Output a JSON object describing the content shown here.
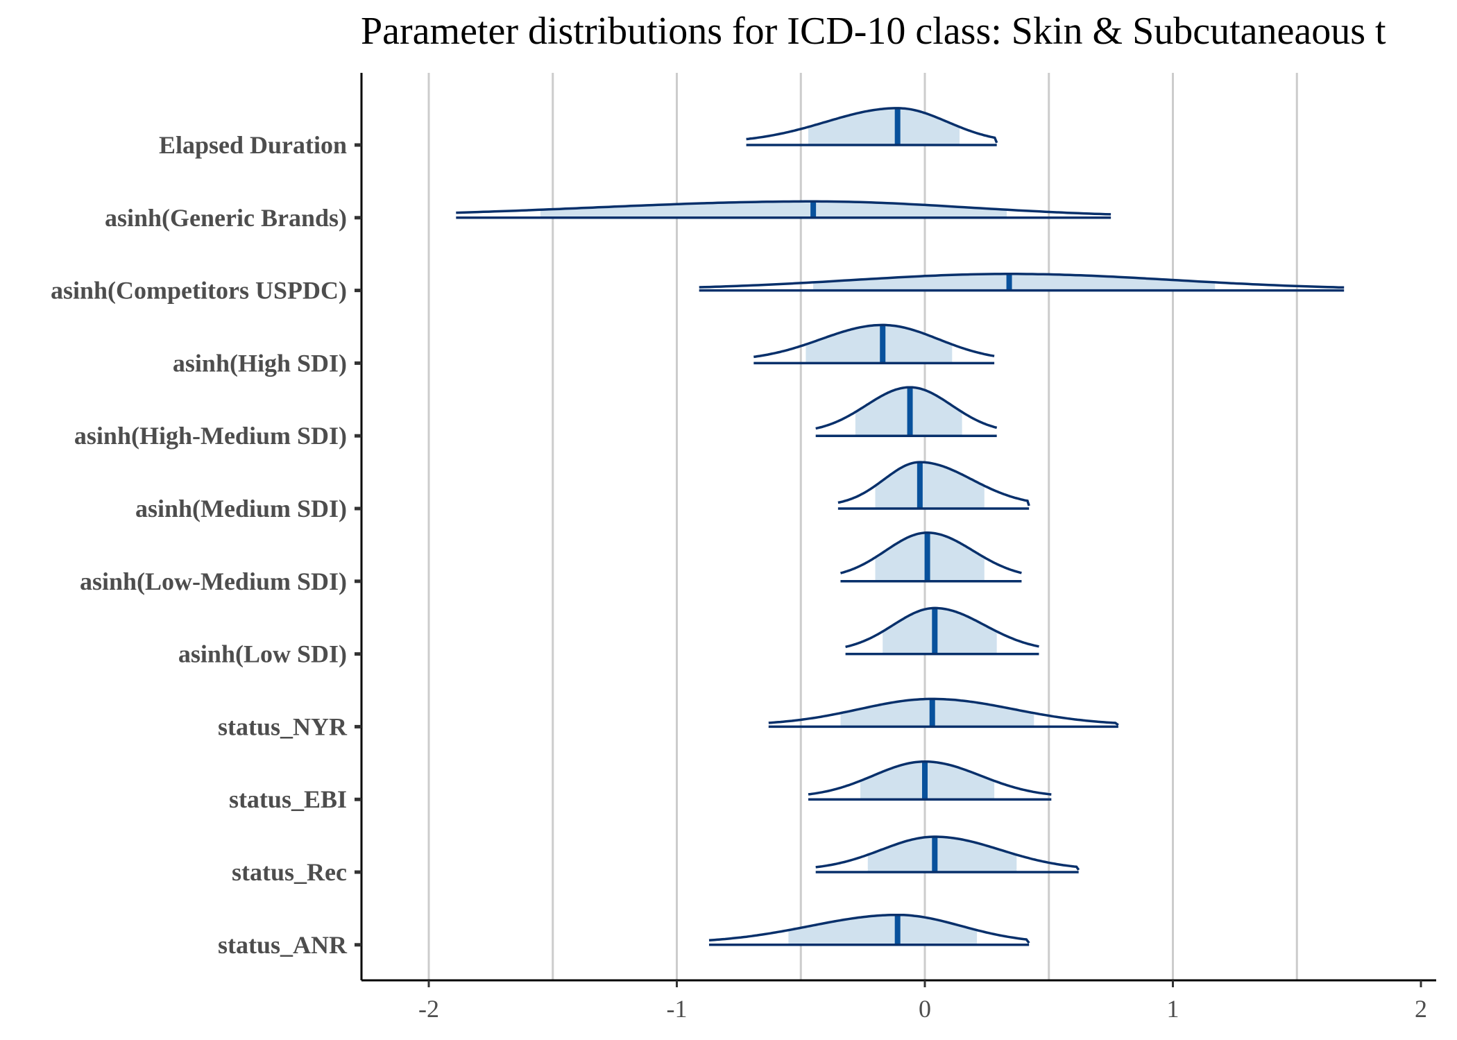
{
  "chart_data": {
    "type": "area",
    "title": "Parameter distributions for ICD-10 class: Skin & Subcutaneaous t",
    "xlabel": "",
    "ylabel": "",
    "xlim": [
      -2.27,
      2.05
    ],
    "xticks": [
      -2,
      -1,
      0,
      1,
      2
    ],
    "xtick_labels": [
      "-2",
      "-1",
      "0",
      "1",
      "2"
    ],
    "grid_x": [
      -2,
      -1.5,
      -1,
      -0.5,
      0,
      0.5,
      1,
      1.5
    ],
    "grid": true,
    "colors": {
      "outline": "#08306b",
      "fill": "#d0e1ee",
      "median": "#08519c",
      "grid": "#cccccc",
      "axis": "#000000",
      "label": "#4d4d4d"
    },
    "series": [
      {
        "label": "Elapsed Duration",
        "median": -0.11,
        "interval": [
          -0.47,
          0.14
        ],
        "range": [
          -0.72,
          0.29
        ]
      },
      {
        "label": "asinh(Generic Brands)",
        "median": -0.45,
        "interval": [
          -1.55,
          0.33
        ],
        "range": [
          -1.89,
          0.75
        ]
      },
      {
        "label": "asinh(Competitors USPDC)",
        "median": 0.34,
        "interval": [
          -0.45,
          1.17
        ],
        "range": [
          -0.91,
          1.69
        ]
      },
      {
        "label": "asinh(High SDI)",
        "median": -0.17,
        "interval": [
          -0.48,
          0.11
        ],
        "range": [
          -0.69,
          0.28
        ]
      },
      {
        "label": "asinh(High-Medium SDI)",
        "median": -0.06,
        "interval": [
          -0.28,
          0.15
        ],
        "range": [
          -0.44,
          0.29
        ]
      },
      {
        "label": "asinh(Medium SDI)",
        "median": -0.02,
        "interval": [
          -0.2,
          0.24
        ],
        "range": [
          -0.35,
          0.42
        ]
      },
      {
        "label": "asinh(Low-Medium SDI)",
        "median": 0.01,
        "interval": [
          -0.2,
          0.24
        ],
        "range": [
          -0.34,
          0.39
        ]
      },
      {
        "label": "asinh(Low SDI)",
        "median": 0.04,
        "interval": [
          -0.17,
          0.29
        ],
        "range": [
          -0.32,
          0.46
        ]
      },
      {
        "label": "status_NYR",
        "median": 0.03,
        "interval": [
          -0.34,
          0.44
        ],
        "range": [
          -0.63,
          0.78
        ]
      },
      {
        "label": "status_EBI",
        "median": 0.0,
        "interval": [
          -0.26,
          0.28
        ],
        "range": [
          -0.47,
          0.51
        ]
      },
      {
        "label": "status_Rec",
        "median": 0.04,
        "interval": [
          -0.23,
          0.37
        ],
        "range": [
          -0.44,
          0.62
        ]
      },
      {
        "label": "status_ANR",
        "median": -0.11,
        "interval": [
          -0.55,
          0.21
        ],
        "range": [
          -0.87,
          0.42
        ]
      }
    ]
  }
}
